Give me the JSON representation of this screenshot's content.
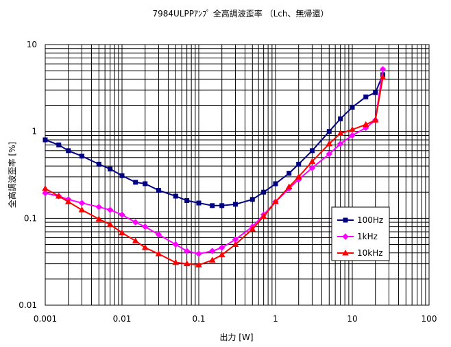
{
  "chart_data": {
    "type": "line",
    "title": "7984ULPPｱﾝﾌﾟ 全高調波歪率 （Lch、無帰還）",
    "xlabel": "出力 [W]",
    "ylabel": "全高調波歪率 [%]",
    "x_scale": "log",
    "y_scale": "log",
    "xlim": [
      0.001,
      100
    ],
    "ylim": [
      0.01,
      10
    ],
    "x_ticks": [
      {
        "value": 0.001,
        "label": "0.001"
      },
      {
        "value": 0.01,
        "label": "0.01"
      },
      {
        "value": 0.1,
        "label": "0.1"
      },
      {
        "value": 1,
        "label": "1"
      },
      {
        "value": 10,
        "label": "10"
      },
      {
        "value": 100,
        "label": "100"
      }
    ],
    "y_ticks": [
      {
        "value": 0.01,
        "label": "0.01"
      },
      {
        "value": 0.1,
        "label": "0.1"
      },
      {
        "value": 1,
        "label": "1"
      },
      {
        "value": 10,
        "label": "10"
      }
    ],
    "grid": true,
    "legend_position": "right",
    "series": [
      {
        "name": "100Hz",
        "color": "#000080",
        "marker": "square",
        "points": [
          [
            0.001,
            0.8
          ],
          [
            0.0015,
            0.7
          ],
          [
            0.002,
            0.6
          ],
          [
            0.003,
            0.52
          ],
          [
            0.005,
            0.42
          ],
          [
            0.007,
            0.37
          ],
          [
            0.01,
            0.31
          ],
          [
            0.015,
            0.26
          ],
          [
            0.02,
            0.25
          ],
          [
            0.03,
            0.21
          ],
          [
            0.05,
            0.18
          ],
          [
            0.07,
            0.16
          ],
          [
            0.1,
            0.15
          ],
          [
            0.15,
            0.14
          ],
          [
            0.2,
            0.14
          ],
          [
            0.3,
            0.145
          ],
          [
            0.5,
            0.165
          ],
          [
            0.7,
            0.2
          ],
          [
            1,
            0.25
          ],
          [
            1.5,
            0.33
          ],
          [
            2,
            0.42
          ],
          [
            3,
            0.6
          ],
          [
            5,
            1.0
          ],
          [
            7,
            1.4
          ],
          [
            10,
            1.9
          ],
          [
            15,
            2.5
          ],
          [
            20,
            2.8
          ],
          [
            25,
            4.5
          ]
        ]
      },
      {
        "name": "1kHz",
        "color": "#ff00ff",
        "marker": "diamond",
        "points": [
          [
            0.001,
            0.195
          ],
          [
            0.0015,
            0.18
          ],
          [
            0.002,
            0.165
          ],
          [
            0.003,
            0.15
          ],
          [
            0.005,
            0.135
          ],
          [
            0.007,
            0.125
          ],
          [
            0.01,
            0.11
          ],
          [
            0.015,
            0.09
          ],
          [
            0.02,
            0.08
          ],
          [
            0.03,
            0.065
          ],
          [
            0.05,
            0.05
          ],
          [
            0.07,
            0.042
          ],
          [
            0.1,
            0.039
          ],
          [
            0.15,
            0.042
          ],
          [
            0.2,
            0.046
          ],
          [
            0.3,
            0.057
          ],
          [
            0.5,
            0.08
          ],
          [
            0.7,
            0.11
          ],
          [
            1,
            0.155
          ],
          [
            1.5,
            0.22
          ],
          [
            2,
            0.28
          ],
          [
            3,
            0.38
          ],
          [
            5,
            0.55
          ],
          [
            7,
            0.72
          ],
          [
            10,
            0.9
          ],
          [
            15,
            1.1
          ],
          [
            20,
            1.35
          ],
          [
            25,
            5.2
          ]
        ]
      },
      {
        "name": "10kHz",
        "color": "#ff0000",
        "marker": "triangle",
        "points": [
          [
            0.001,
            0.22
          ],
          [
            0.0015,
            0.18
          ],
          [
            0.002,
            0.155
          ],
          [
            0.003,
            0.125
          ],
          [
            0.005,
            0.098
          ],
          [
            0.007,
            0.085
          ],
          [
            0.01,
            0.068
          ],
          [
            0.015,
            0.055
          ],
          [
            0.02,
            0.046
          ],
          [
            0.03,
            0.039
          ],
          [
            0.05,
            0.031
          ],
          [
            0.07,
            0.03
          ],
          [
            0.1,
            0.029
          ],
          [
            0.15,
            0.033
          ],
          [
            0.2,
            0.038
          ],
          [
            0.3,
            0.05
          ],
          [
            0.5,
            0.075
          ],
          [
            0.7,
            0.105
          ],
          [
            1,
            0.155
          ],
          [
            1.5,
            0.23
          ],
          [
            2,
            0.3
          ],
          [
            3,
            0.45
          ],
          [
            5,
            0.72
          ],
          [
            7,
            0.95
          ],
          [
            10,
            1.05
          ],
          [
            15,
            1.2
          ],
          [
            20,
            1.35
          ],
          [
            25,
            4.2
          ]
        ]
      }
    ]
  }
}
